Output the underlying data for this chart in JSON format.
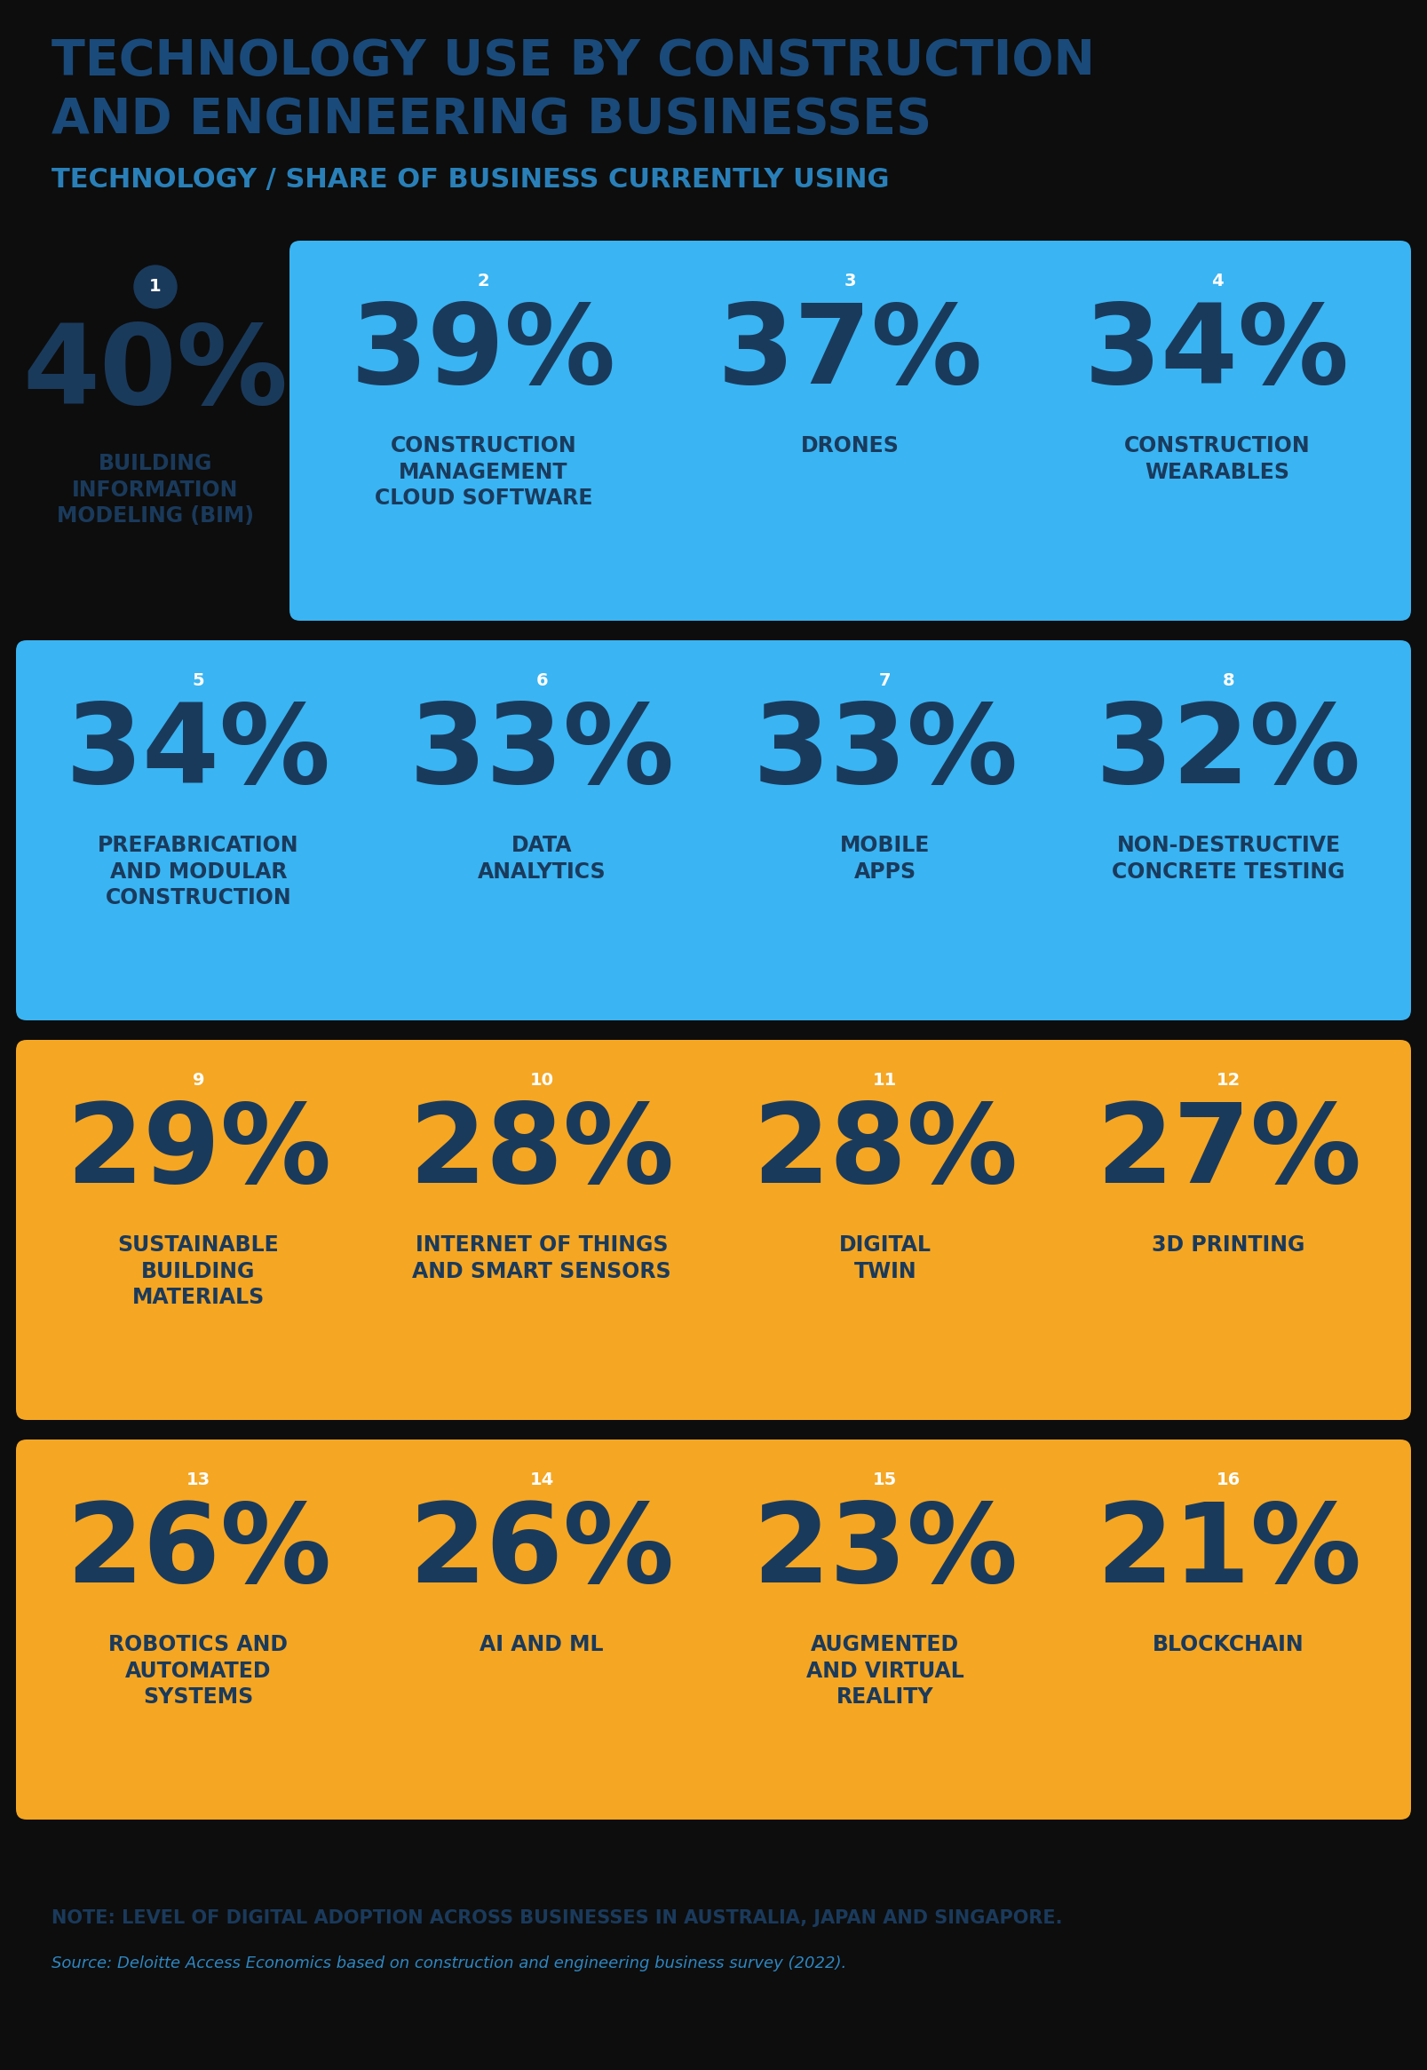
{
  "title_line1": "TECHNOLOGY USE BY CONSTRUCTION",
  "title_line2": "AND ENGINEERING BUSINESSES",
  "subtitle": "TECHNOLOGY / SHARE OF BUSINESS CURRENTLY USING",
  "background_color": "#0d0d0d",
  "title_color": "#1a4a7a",
  "subtitle_color": "#2980b9",
  "note_bold": "NOTE: LEVEL OF DIGITAL ADOPTION ACROSS BUSINESSES IN AUSTRALIA, JAPAN AND SINGAPORE.",
  "note_source": "Source: Deloitte Access Economics based on construction and engineering business survey (2022).",
  "rows": [
    {
      "bg_color": "#3ab4f2",
      "rank_color": "#ffffff",
      "special_first": true,
      "items": [
        {
          "rank": "1",
          "pct": "40%",
          "label": "BUILDING\nINFORMATION\nMODELING (BIM)",
          "special": true
        },
        {
          "rank": "2",
          "pct": "39%",
          "label": "CONSTRUCTION\nMANAGEMENT\nCLOUD SOFTWARE"
        },
        {
          "rank": "3",
          "pct": "37%",
          "label": "DRONES"
        },
        {
          "rank": "4",
          "pct": "34%",
          "label": "CONSTRUCTION\nWEARABLES"
        }
      ]
    },
    {
      "bg_color": "#3ab4f2",
      "rank_color": "#ffffff",
      "special_first": false,
      "items": [
        {
          "rank": "5",
          "pct": "34%",
          "label": "PREFABRICATION\nAND MODULAR\nCONSTRUCTION"
        },
        {
          "rank": "6",
          "pct": "33%",
          "label": "DATA\nANALYTICS"
        },
        {
          "rank": "7",
          "pct": "33%",
          "label": "MOBILE\nAPPS"
        },
        {
          "rank": "8",
          "pct": "32%",
          "label": "NON-DESTRUCTIVE\nCONCRETE TESTING"
        }
      ]
    },
    {
      "bg_color": "#f5a623",
      "rank_color": "#ffffff",
      "special_first": false,
      "items": [
        {
          "rank": "9",
          "pct": "29%",
          "label": "SUSTAINABLE\nBUILDING\nMATERIALS"
        },
        {
          "rank": "10",
          "pct": "28%",
          "label": "INTERNET OF THINGS\nAND SMART SENSORS"
        },
        {
          "rank": "11",
          "pct": "28%",
          "label": "DIGITAL\nTWIN"
        },
        {
          "rank": "12",
          "pct": "27%",
          "label": "3D PRINTING"
        }
      ]
    },
    {
      "bg_color": "#f5a623",
      "rank_color": "#ffffff",
      "special_first": false,
      "items": [
        {
          "rank": "13",
          "pct": "26%",
          "label": "ROBOTICS AND\nAUTOMATED\nSYSTEMS"
        },
        {
          "rank": "14",
          "pct": "26%",
          "label": "AI AND ML"
        },
        {
          "rank": "15",
          "pct": "23%",
          "label": "AUGMENTED\nAND VIRTUAL\nREALITY"
        },
        {
          "rank": "16",
          "pct": "21%",
          "label": "BLOCKCHAIN"
        }
      ]
    }
  ],
  "dark_blue": "#1a3a5c",
  "fig_width": 1607,
  "fig_height": 2331,
  "dpi": 100
}
